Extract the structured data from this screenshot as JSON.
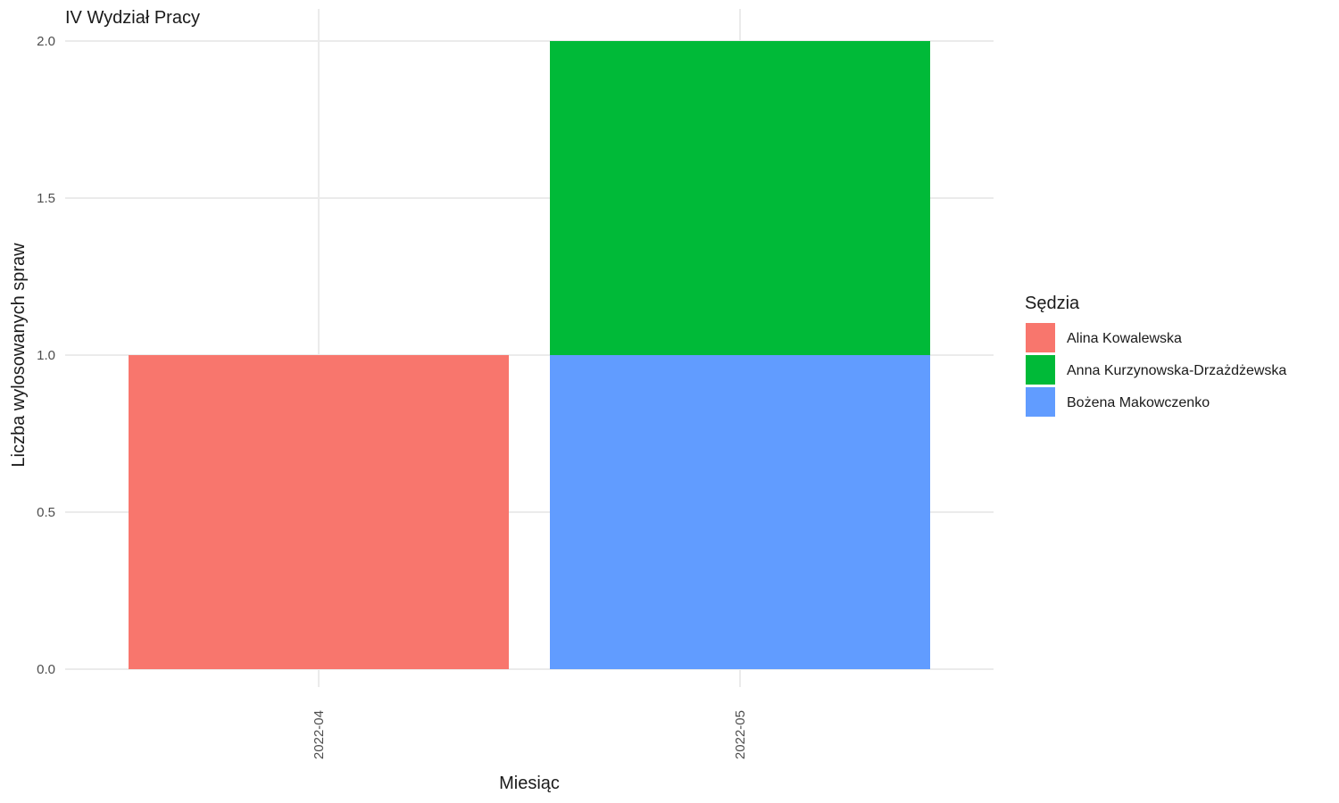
{
  "chart_data": {
    "type": "bar",
    "stacked": true,
    "title": "IV Wydział Pracy",
    "xlabel": "Miesiąc",
    "ylabel": "Liczba wylosowanych spraw",
    "categories": [
      "2022-04",
      "2022-05"
    ],
    "ylim": [
      0,
      2
    ],
    "yticks": [
      "0.0",
      "0.5",
      "1.0",
      "1.5",
      "2.0"
    ],
    "grid": true,
    "legend": {
      "title": "Sędzia",
      "position": "right"
    },
    "series": [
      {
        "name": "Alina Kowalewska",
        "color": "#F8766D",
        "values": [
          1,
          0
        ]
      },
      {
        "name": "Anna Kurzynowska-Drzażdżewska",
        "color": "#00BA38",
        "values": [
          0,
          1
        ]
      },
      {
        "name": "Bożena Makowczenko",
        "color": "#619CFF",
        "values": [
          0,
          1
        ]
      }
    ],
    "stack_order": [
      "Bożena Makowczenko",
      "Anna Kurzynowska-Drzażdżewska",
      "Alina Kowalewska"
    ]
  }
}
